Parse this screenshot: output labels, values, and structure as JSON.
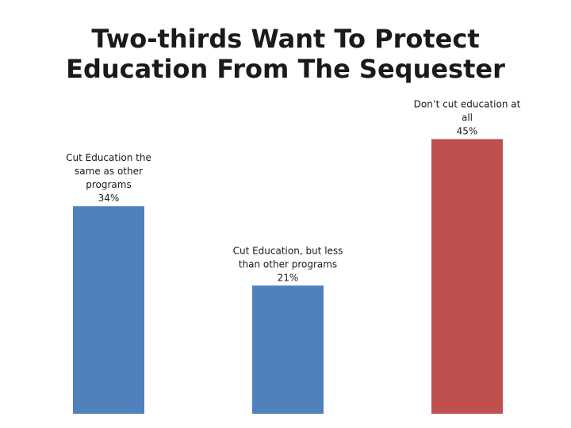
{
  "chart_data": {
    "type": "bar",
    "title_lines": [
      "Two-thirds Want To Protect",
      "Education From The Sequester"
    ],
    "categories": [
      "Cut Education the same as other programs",
      "Cut Education, but less than other programs",
      "Don't cut education at all"
    ],
    "values": [
      34,
      21,
      45
    ],
    "data_labels": [
      {
        "lines": [
          "Cut Education the",
          "same as other",
          "programs",
          "34%"
        ]
      },
      {
        "lines": [
          "Cut Education, but less",
          "than other programs",
          "21%"
        ]
      },
      {
        "lines": [
          "Don’t cut education at",
          "all",
          "45%"
        ]
      }
    ],
    "colors": [
      "#4f81bd",
      "#4f81bd",
      "#c0504d"
    ],
    "ylim": [
      0,
      50
    ],
    "grid": false,
    "xlabel": "",
    "ylabel": ""
  }
}
